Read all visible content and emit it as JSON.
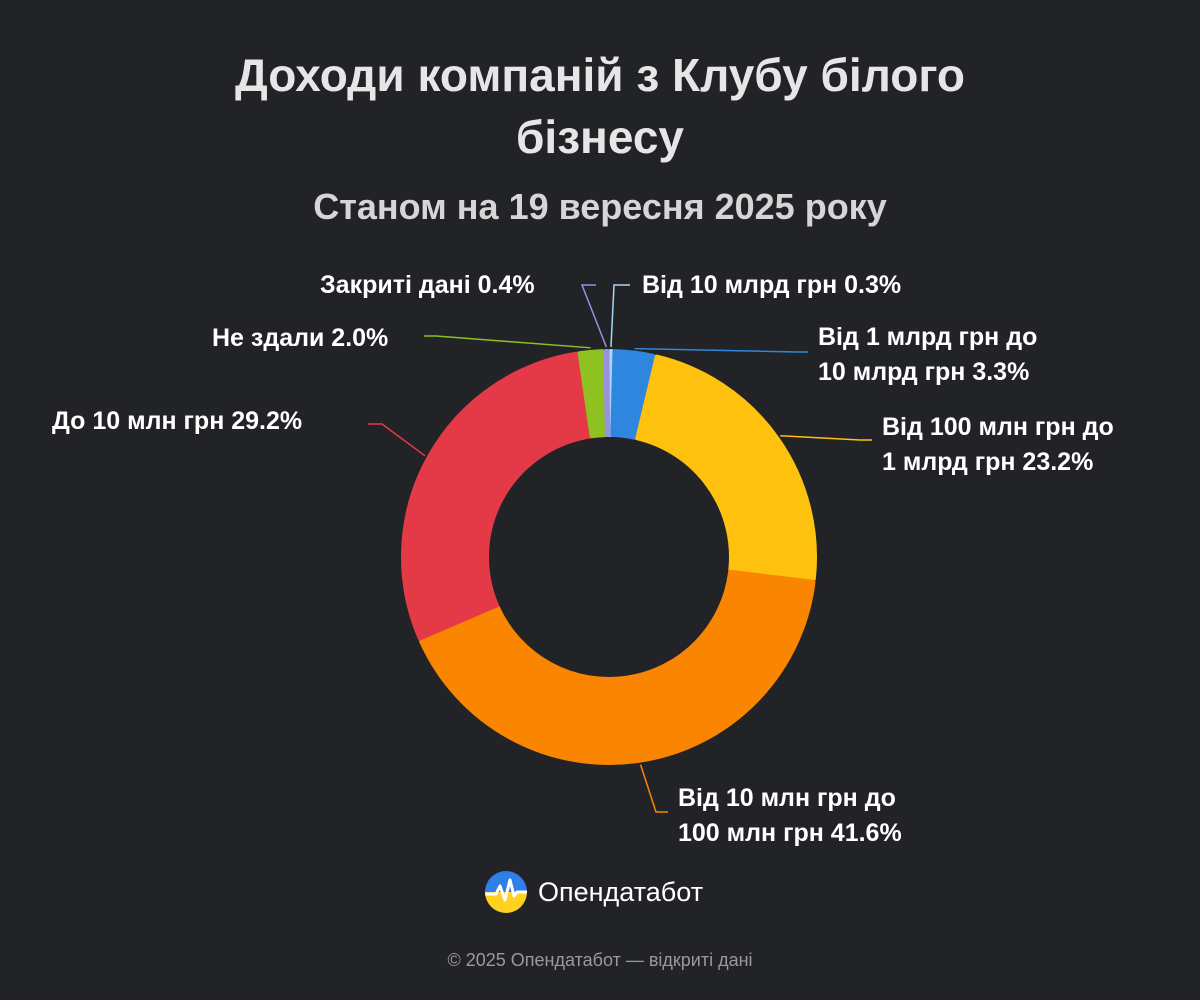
{
  "chart_data": {
    "type": "pie",
    "title": "Доходи компаній з Клубу білого бізнесу",
    "subtitle": "Станом на 19 вересня 2025 року",
    "slices": [
      {
        "label": "Від 10 млрд грн",
        "value": 0.3,
        "value_label": "0.3%",
        "color": "#a8d8f0"
      },
      {
        "label": "Від 1 млрд грн до 10 млрд грн",
        "value": 3.3,
        "value_label": "3.3%",
        "color": "#2e86de"
      },
      {
        "label": "Від 100 млн грн до 1 млрд грн",
        "value": 23.2,
        "value_label": "23.2%",
        "color": "#fec10e"
      },
      {
        "label": "Від 10 млн грн до 100 млн грн",
        "value": 41.6,
        "value_label": "41.6%",
        "color": "#fa8500"
      },
      {
        "label": "До 10 млн грн",
        "value": 29.2,
        "value_label": "29.2%",
        "color": "#e43a47"
      },
      {
        "label": "Не здали",
        "value": 2.0,
        "value_label": "2.0%",
        "color": "#8dc221"
      },
      {
        "label": "Закриті дані",
        "value": 0.4,
        "value_label": "0.4%",
        "color": "#9b8fe0"
      }
    ],
    "label_lines": [
      "Від 10 млрд грн 0.3%",
      "Від 1 млрд грн до\n10 млрд грн 3.3%",
      "Від 100 млн грн до\n1 млрд грн 23.2%",
      "Від 10 млн грн до\n100 млн грн 41.6%",
      "До 10 млн грн 29.2%",
      "Не здали 2.0%",
      "Закриті дані 0.4%"
    ]
  },
  "brand": {
    "name": "Опендатабот",
    "icon": "opendatabot-logo-icon",
    "colors": {
      "top": "#2f7fe8",
      "bottom": "#ffd21f"
    }
  },
  "footer": "© 2025 Опендатабот — відкриті дані"
}
